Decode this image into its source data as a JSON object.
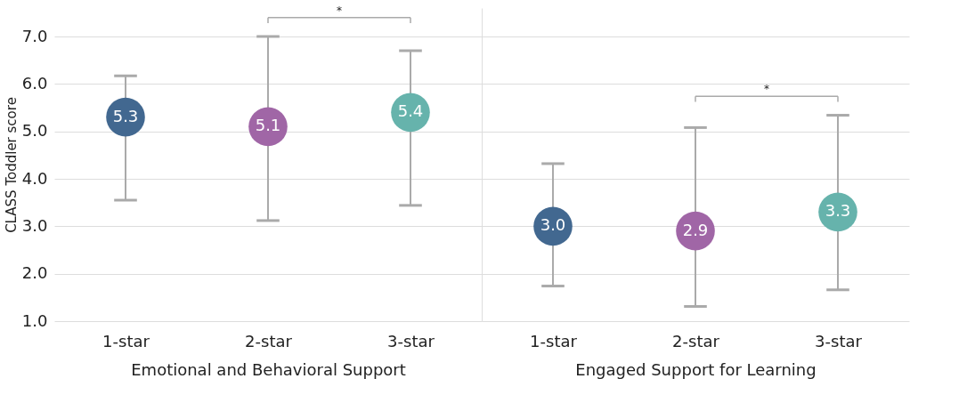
{
  "chart_data": [
    {
      "type": "scatter",
      "ylabel": "CLASS Toddler score",
      "xlabel": "Emotional and Behavioral Support",
      "categories": [
        "1-star",
        "2-star",
        "3-star"
      ],
      "values": [
        5.3,
        5.1,
        5.4
      ],
      "colors": [
        "#426890",
        "#a066a6",
        "#66b3ac"
      ],
      "errors": [
        [
          3.55,
          6.17
        ],
        [
          3.12,
          7.0
        ],
        [
          3.44,
          6.7
        ]
      ],
      "value_labels": [
        "5.3",
        "5.1",
        "5.4"
      ],
      "marker": "circle",
      "ylim": [
        1.0,
        7.6
      ],
      "yticks": [
        {
          "value": 1,
          "label": "1.0"
        },
        {
          "value": 2,
          "label": "2.0"
        },
        {
          "value": 3,
          "label": "3.0"
        },
        {
          "value": 4,
          "label": "4.0"
        },
        {
          "value": 5,
          "label": "5.0"
        },
        {
          "value": 6,
          "label": "6.0"
        },
        {
          "value": 7,
          "label": "7.0"
        }
      ],
      "grid": "y",
      "annotations": [
        "*"
      ]
    },
    {
      "type": "scatter",
      "xlabel": "Engaged Support for Learning",
      "categories": [
        "1-star",
        "2-star",
        "3-star"
      ],
      "values": [
        3.0,
        2.9,
        3.3
      ],
      "colors": [
        "#426890",
        "#a066a6",
        "#66b3ac"
      ],
      "errors": [
        [
          1.74,
          4.32
        ],
        [
          1.31,
          5.08
        ],
        [
          1.66,
          5.34
        ]
      ],
      "value_labels": [
        "3.0",
        "2.9",
        "3.3"
      ],
      "marker": "circle",
      "ylim": [
        1.0,
        7.6
      ],
      "yticks": [
        {
          "value": 1,
          "label": null
        },
        {
          "value": 2,
          "label": null
        },
        {
          "value": 3,
          "label": null
        },
        {
          "value": 4,
          "label": null
        },
        {
          "value": 5,
          "label": null
        },
        {
          "value": 6,
          "label": null
        },
        {
          "value": 7,
          "label": null
        }
      ],
      "grid": "y",
      "tick_labels": "x",
      "annotations": [
        "*"
      ]
    }
  ]
}
